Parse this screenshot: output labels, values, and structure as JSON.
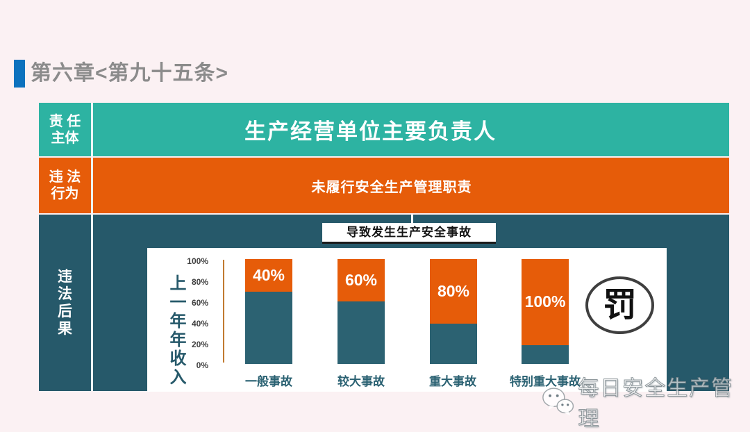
{
  "colors": {
    "background": "#FBF1F3",
    "accent-blue": "#0C72BE",
    "teal": "#2DB3A2",
    "orange": "#E65C09",
    "dark-teal": "#26596A",
    "bar-teal": "#2C6272",
    "axis-line": "#C17A30",
    "title-gray": "#8B8B8B",
    "category-text": "#2A6172"
  },
  "header": {
    "title": "第六章<第九十五条>"
  },
  "rows": {
    "responsibility": {
      "label": [
        "责 任",
        "主体"
      ],
      "content": "生产经营单位主要负责人"
    },
    "violation": {
      "label": [
        "违 法",
        "行为"
      ],
      "content": "未履行安全生产管理职责"
    },
    "consequence": {
      "label": [
        "违",
        "法",
        "后",
        "果"
      ]
    }
  },
  "chart_data": {
    "type": "bar",
    "subtype": "stacked",
    "title": "导致发生生产安全事故",
    "ylabel": "上一年年收入",
    "yticks": [
      "100%",
      "80%",
      "60%",
      "40%",
      "20%",
      "0%"
    ],
    "ylim": [
      0,
      100
    ],
    "grid": false,
    "legend": "none",
    "categories": [
      "一般事故",
      "较大事故",
      "重大事故",
      "特别重大事故"
    ],
    "values": [
      40,
      60,
      80,
      100
    ],
    "value_labels": [
      "40%",
      "60%",
      "80%",
      "100%"
    ],
    "top_segment_fraction": [
      0.311,
      0.404,
      0.616,
      0.821
    ],
    "top_segment_color": "#E65C09",
    "bottom_segment_color": "#2C6272"
  },
  "penalty": {
    "char": "罚"
  },
  "watermark": {
    "icon": "wechat-icon",
    "text": "每日安全生产管理"
  }
}
